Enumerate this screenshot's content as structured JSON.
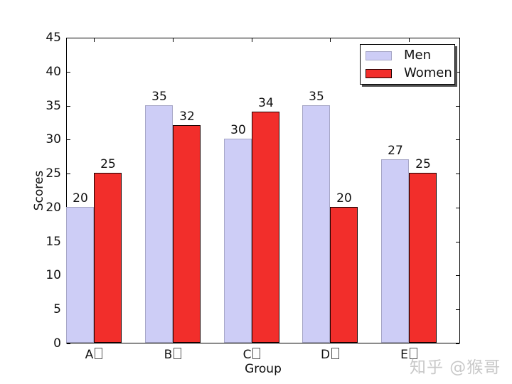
{
  "figure": {
    "background": "#ffffff",
    "text_color": "#111111",
    "watermark": {
      "text": "知乎 @猴哥",
      "color": "#c9c9c9"
    }
  },
  "chart_data": {
    "type": "bar",
    "title": "",
    "xlabel": "Group",
    "ylabel": "Scores",
    "categories": [
      "A□",
      "B□",
      "C□",
      "D□",
      "E□"
    ],
    "series": [
      {
        "name": "Men",
        "values": [
          20,
          35,
          30,
          35,
          27
        ],
        "fill": "#cdcdf6",
        "edge": "#a6a6c6"
      },
      {
        "name": "Women",
        "values": [
          25,
          32,
          34,
          20,
          25
        ],
        "fill": "#f22e2b",
        "edge": "#1a0000"
      }
    ],
    "bar_value_labels": true,
    "ylim": [
      0,
      45
    ],
    "ytick_step": 5,
    "yticks": [
      0,
      5,
      10,
      15,
      20,
      25,
      30,
      35,
      40,
      45
    ],
    "grid": false,
    "legend": {
      "position": "upper right",
      "shadow": true,
      "entries": [
        "Men",
        "Women"
      ]
    }
  }
}
